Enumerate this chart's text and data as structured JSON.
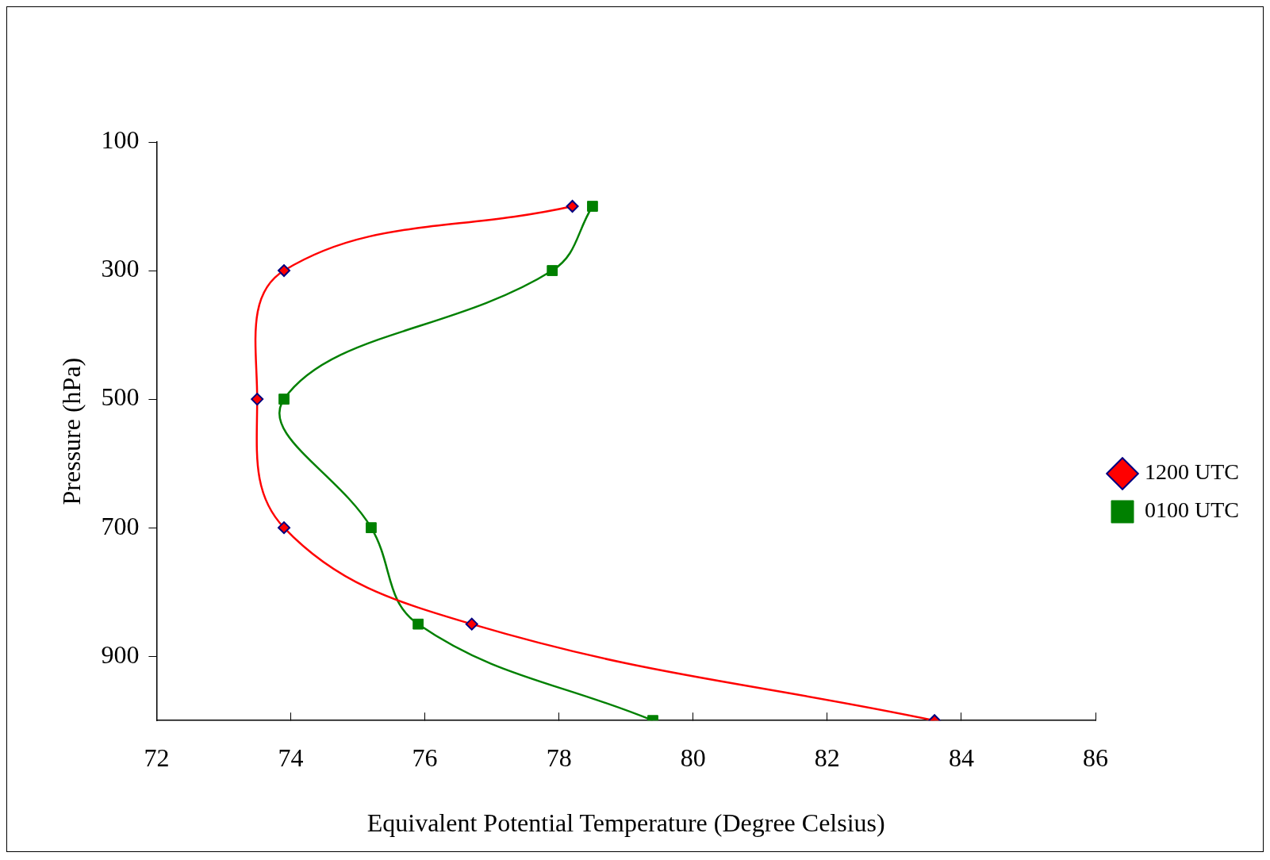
{
  "chart_data": {
    "type": "line",
    "xlabel": "Equivalent Potential Temperature (Degree Celsius)",
    "ylabel": "Pressure (hPa)",
    "xlim": [
      72,
      86
    ],
    "xticks": [
      72,
      74,
      76,
      78,
      80,
      82,
      84,
      86
    ],
    "ylim": [
      1000,
      100
    ],
    "yticks": [
      100,
      300,
      500,
      700,
      900
    ],
    "grid": false,
    "legend": "right",
    "line_style": "solid",
    "series": [
      {
        "name": "1200 UTC",
        "color": "#ff0000",
        "marker": "diamond",
        "x": [
          78.2,
          73.9,
          73.5,
          73.9,
          76.7,
          83.6
        ],
        "values": [
          200,
          300,
          500,
          700,
          850,
          1000
        ]
      },
      {
        "name": "0100 UTC",
        "color": "#008000",
        "marker": "square",
        "x": [
          78.5,
          77.9,
          73.9,
          75.2,
          75.9,
          79.4
        ],
        "values": [
          200,
          300,
          500,
          700,
          850,
          1000
        ]
      }
    ]
  }
}
